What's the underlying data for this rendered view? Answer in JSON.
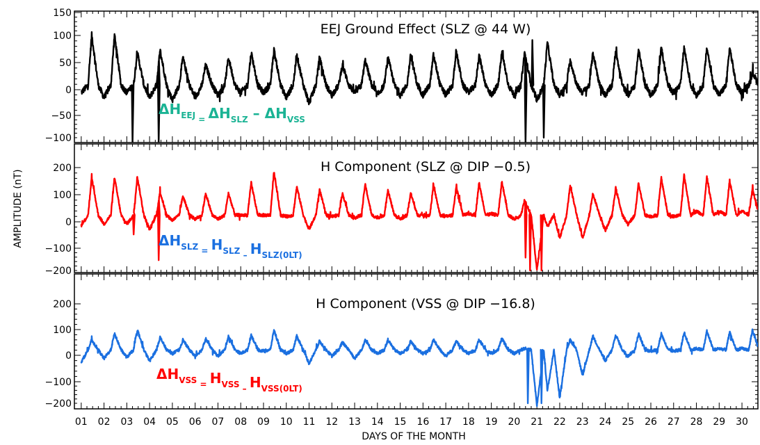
{
  "chart_data": {
    "type": "line",
    "ylabel": "AMPLITUDE (nT)",
    "xlabel": "DAYS OF THE MONTH",
    "x_tick_labels": [
      "01",
      "02",
      "03",
      "04",
      "05",
      "06",
      "07",
      "08",
      "09",
      "10",
      "11",
      "12",
      "13",
      "14",
      "15",
      "16",
      "17",
      "18",
      "19",
      "20",
      "21",
      "22",
      "23",
      "24",
      "25",
      "26",
      "27",
      "28",
      "29",
      "30"
    ],
    "xlim": [
      0.7,
      30.7
    ],
    "panels": [
      {
        "title": "EEJ Ground Effect (SLZ @ 44 W)",
        "ylim": [
          -100,
          150
        ],
        "yticks": [
          "150",
          "100",
          "50",
          "0",
          "−50",
          "−100"
        ],
        "color": "#000000",
        "equation": {
          "lhs_sub": "EEJ",
          "rhs1_sub": "SLZ",
          "rhs2_sub": "VSS",
          "color": "#1ab394"
        },
        "series": {
          "baseline": 5,
          "peaks": [
            105,
            105,
            70,
            75,
            60,
            45,
            60,
            70,
            75,
            65,
            60,
            45,
            55,
            60,
            65,
            65,
            70,
            65,
            70,
            70,
            90,
            55,
            70,
            75,
            75,
            80,
            80,
            80,
            80,
            30
          ],
          "nights": [
            -10,
            -20,
            -10,
            -20,
            -25,
            -20,
            -15,
            -10,
            -10,
            -20,
            -30,
            -15,
            -10,
            -15,
            -15,
            -15,
            -15,
            -10,
            -15,
            -15,
            -25,
            -15,
            -10,
            -15,
            -15,
            -15,
            -10,
            -15,
            -15,
            -10
          ],
          "spikes": [
            [
              3.25,
              -110
            ],
            [
              4.4,
              -110
            ],
            [
              20.5,
              -110
            ],
            [
              20.8,
              95
            ],
            [
              21.3,
              -100
            ]
          ]
        }
      },
      {
        "title": "H Component (SLZ @ DIP −0.5)",
        "ylim": [
          -200,
          300
        ],
        "yticks": [
          "200",
          "100",
          "0",
          "−100",
          "−200"
        ],
        "color": "#ff0000",
        "equation": {
          "lhs_sub": "SLZ",
          "rhs1_sub": "SLZ",
          "rhs2_sub": "SLZ(0LT)",
          "color": "#1a6fe0"
        },
        "series": {
          "baseline": 15,
          "peaks": [
            160,
            160,
            165,
            105,
            90,
            100,
            100,
            140,
            185,
            125,
            115,
            100,
            135,
            110,
            100,
            130,
            125,
            140,
            145,
            75,
            -30,
            130,
            100,
            120,
            140,
            160,
            170,
            165,
            150,
            120
          ],
          "nights": [
            -25,
            -20,
            -20,
            -40,
            -5,
            0,
            0,
            15,
            15,
            10,
            -40,
            10,
            5,
            5,
            0,
            15,
            10,
            20,
            20,
            0,
            -200,
            -75,
            -75,
            -45,
            -20,
            10,
            10,
            30,
            30,
            30
          ],
          "spikes": [
            [
              3.3,
              -60
            ],
            [
              4.4,
              -160
            ],
            [
              20.5,
              -150
            ],
            [
              20.7,
              -200
            ],
            [
              21.2,
              -200
            ]
          ]
        }
      },
      {
        "title": "H Component (VSS @ DIP −16.8)",
        "ylim": [
          -200,
          300
        ],
        "yticks": [
          "200",
          "100",
          "0",
          "−100",
          "−200"
        ],
        "color": "#1a6fe0",
        "equation": {
          "lhs_sub": "VSS",
          "rhs1_sub": "VSS",
          "rhs2_sub": "VSS(0LT)",
          "color": "#ff0000"
        },
        "series": {
          "baseline": 15,
          "peaks": [
            55,
            80,
            95,
            65,
            55,
            60,
            70,
            75,
            95,
            70,
            50,
            45,
            55,
            55,
            50,
            55,
            50,
            55,
            60,
            20,
            -150,
            55,
            70,
            75,
            80,
            80,
            85,
            90,
            85,
            95
          ],
          "nights": [
            -35,
            -20,
            -15,
            -30,
            0,
            -10,
            -10,
            0,
            10,
            0,
            -40,
            -10,
            -20,
            0,
            0,
            0,
            -10,
            0,
            0,
            0,
            -210,
            -180,
            -90,
            -30,
            -10,
            10,
            10,
            20,
            20,
            20
          ],
          "spikes": [
            [
              20.6,
              -200
            ],
            [
              21.2,
              -200
            ]
          ]
        }
      }
    ]
  }
}
